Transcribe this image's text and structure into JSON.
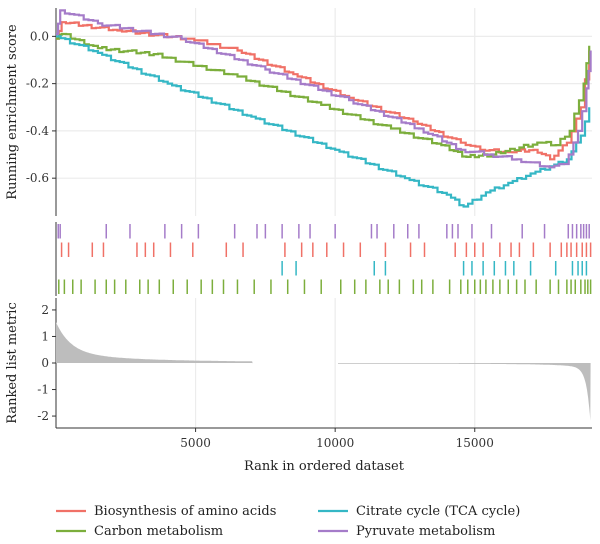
{
  "chart_data": {
    "type": "line",
    "x_axis": {
      "label": "Rank in ordered dataset",
      "ticks": [
        5000,
        10000,
        15000
      ],
      "range": [
        0,
        19200
      ]
    },
    "panels": {
      "enrichment": {
        "ylabel": "Running enrichment score",
        "ylim": [
          -0.76,
          0.12
        ],
        "yticks": [
          "0.0",
          "-0.2",
          "-0.4",
          "-0.6"
        ],
        "ytick_values": [
          0.0,
          -0.2,
          -0.4,
          -0.6
        ]
      },
      "ranked_metric": {
        "ylabel": "Ranked list metric",
        "ylim": [
          -2.45,
          2.45
        ],
        "yticks": [
          "2",
          "1",
          "0",
          "-1",
          "-2"
        ],
        "ytick_values": [
          2,
          1,
          0,
          -1,
          -2
        ],
        "fill_color": "#bdbdbd",
        "gap": [
          7050,
          10100
        ]
      }
    },
    "series": [
      {
        "name": "Biosynthesis of amino acids",
        "color": "#f07167",
        "x": [
          0,
          200,
          2200,
          4800,
          6500,
          8500,
          10500,
          12800,
          14500,
          15200,
          16200,
          17100,
          17700,
          18300,
          18800,
          19100
        ],
        "values": [
          -0.01,
          0.06,
          0.025,
          -0.01,
          -0.06,
          -0.16,
          -0.26,
          -0.36,
          -0.45,
          -0.48,
          -0.49,
          -0.48,
          -0.52,
          -0.45,
          -0.3,
          -0.06
        ]
      },
      {
        "name": "Carbon metabolism",
        "color": "#7cae3c",
        "x": [
          0,
          200,
          1500,
          3500,
          6500,
          9500,
          12000,
          13800,
          14700,
          15600,
          16600,
          17400,
          17900,
          18400,
          18900,
          19100
        ],
        "values": [
          -0.01,
          0.01,
          -0.05,
          -0.075,
          -0.17,
          -0.29,
          -0.39,
          -0.46,
          -0.51,
          -0.5,
          -0.47,
          -0.45,
          -0.46,
          -0.4,
          -0.2,
          -0.04
        ]
      },
      {
        "name": "Citrate cycle (TCA cycle)",
        "color": "#35b7c5",
        "x": [
          0,
          1500,
          4000,
          7000,
          10000,
          12500,
          14000,
          14600,
          15400,
          16200,
          17000,
          17700,
          18300,
          18800,
          19100
        ],
        "values": [
          0.0,
          -0.07,
          -0.2,
          -0.34,
          -0.48,
          -0.6,
          -0.67,
          -0.72,
          -0.66,
          -0.62,
          -0.58,
          -0.55,
          -0.52,
          -0.42,
          -0.3
        ]
      },
      {
        "name": "Pyruvate metabolism",
        "color": "#a57cc9",
        "x": [
          0,
          150,
          1500,
          4500,
          7500,
          10500,
          13000,
          14500,
          15500,
          16500,
          17500,
          18200,
          18700,
          19000,
          19150
        ],
        "values": [
          0.01,
          0.11,
          0.055,
          -0.01,
          -0.14,
          -0.27,
          -0.39,
          -0.48,
          -0.5,
          -0.52,
          -0.55,
          -0.54,
          -0.4,
          -0.22,
          -0.06
        ]
      }
    ],
    "hit_ranks": [
      {
        "name": "Pyruvate metabolism",
        "color": "#a57cc9",
        "positions": [
          80,
          150,
          1800,
          2650,
          3900,
          4500,
          5100,
          6400,
          7200,
          7500,
          8100,
          8700,
          9100,
          10000,
          11300,
          11500,
          12100,
          12600,
          13000,
          14000,
          14200,
          14400,
          14900,
          15600,
          16700,
          17500,
          18350,
          18500,
          18650,
          18800,
          18900,
          19000,
          19100
        ]
      },
      {
        "name": "Biosynthesis of amino acids",
        "color": "#f07167",
        "positions": [
          200,
          450,
          1300,
          1700,
          2900,
          3200,
          3500,
          4100,
          4900,
          6100,
          6700,
          8200,
          8800,
          9200,
          9700,
          10300,
          10900,
          11800,
          12700,
          13200,
          14300,
          14700,
          15000,
          15300,
          15900,
          16300,
          16600,
          17100,
          17700,
          18100,
          18300,
          18450,
          18650,
          18850,
          19000,
          19150
        ]
      },
      {
        "name": "Citrate cycle (TCA cycle)",
        "color": "#35b7c5",
        "positions": [
          8100,
          8600,
          11400,
          11800,
          14600,
          14900,
          15300,
          15700,
          16100,
          16400,
          17000,
          17900,
          18500,
          18700,
          18850,
          19000
        ]
      },
      {
        "name": "Carbon metabolism",
        "color": "#7cae3c",
        "positions": [
          100,
          300,
          600,
          900,
          1400,
          1800,
          2100,
          2500,
          3000,
          3300,
          3700,
          4200,
          4700,
          5200,
          5600,
          6000,
          6500,
          7100,
          7700,
          8300,
          8900,
          9500,
          10200,
          10700,
          11100,
          11600,
          11900,
          12300,
          12800,
          13100,
          13500,
          14100,
          14500,
          14750,
          15000,
          15200,
          15400,
          15650,
          15900,
          16200,
          16500,
          16800,
          17200,
          17700,
          18000,
          18300,
          18450,
          18600,
          18800,
          18950,
          19050,
          19150
        ]
      }
    ],
    "legend": {
      "placement": "bottom",
      "items": [
        {
          "name": "Biosynthesis of amino acids",
          "color": "#f07167"
        },
        {
          "name": "Citrate cycle (TCA cycle)",
          "color": "#35b7c5"
        },
        {
          "name": "Carbon metabolism",
          "color": "#7cae3c"
        },
        {
          "name": "Pyruvate metabolism",
          "color": "#a57cc9"
        }
      ]
    },
    "grid": true
  }
}
